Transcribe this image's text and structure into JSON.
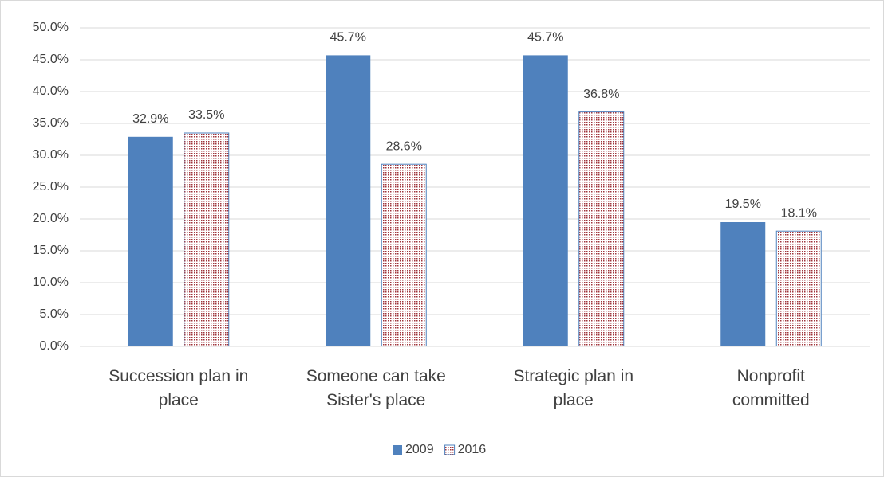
{
  "chart_data": {
    "type": "bar",
    "categories": [
      "Succession plan in\nplace",
      "Someone can take\nSister's place",
      "Strategic plan in\nplace",
      "Nonprofit\ncommitted"
    ],
    "series": [
      {
        "name": "2009",
        "color": "#4f81bd",
        "values": [
          32.9,
          45.7,
          45.7,
          19.5
        ],
        "value_labels": [
          "32.9%",
          "45.7%",
          "45.7%",
          "19.5%"
        ]
      },
      {
        "name": "2016",
        "color": "#a0363c",
        "pattern": "dots",
        "values": [
          33.5,
          28.6,
          36.8,
          18.1
        ],
        "value_labels": [
          "33.5%",
          "28.6%",
          "36.8%",
          "18.1%"
        ]
      }
    ],
    "ylim": [
      0,
      50
    ],
    "yticks": [
      {
        "value": 0,
        "label": "0.0%"
      },
      {
        "value": 5,
        "label": "5.0%"
      },
      {
        "value": 10,
        "label": "10.0%"
      },
      {
        "value": 15,
        "label": "15.0%"
      },
      {
        "value": 20,
        "label": "20.0%"
      },
      {
        "value": 25,
        "label": "25.0%"
      },
      {
        "value": 30,
        "label": "30.0%"
      },
      {
        "value": 35,
        "label": "35.0%"
      },
      {
        "value": 40,
        "label": "40.0%"
      },
      {
        "value": 45,
        "label": "45.0%"
      },
      {
        "value": 50,
        "label": "50.0%"
      }
    ],
    "grid": true,
    "legend": "bottom"
  }
}
